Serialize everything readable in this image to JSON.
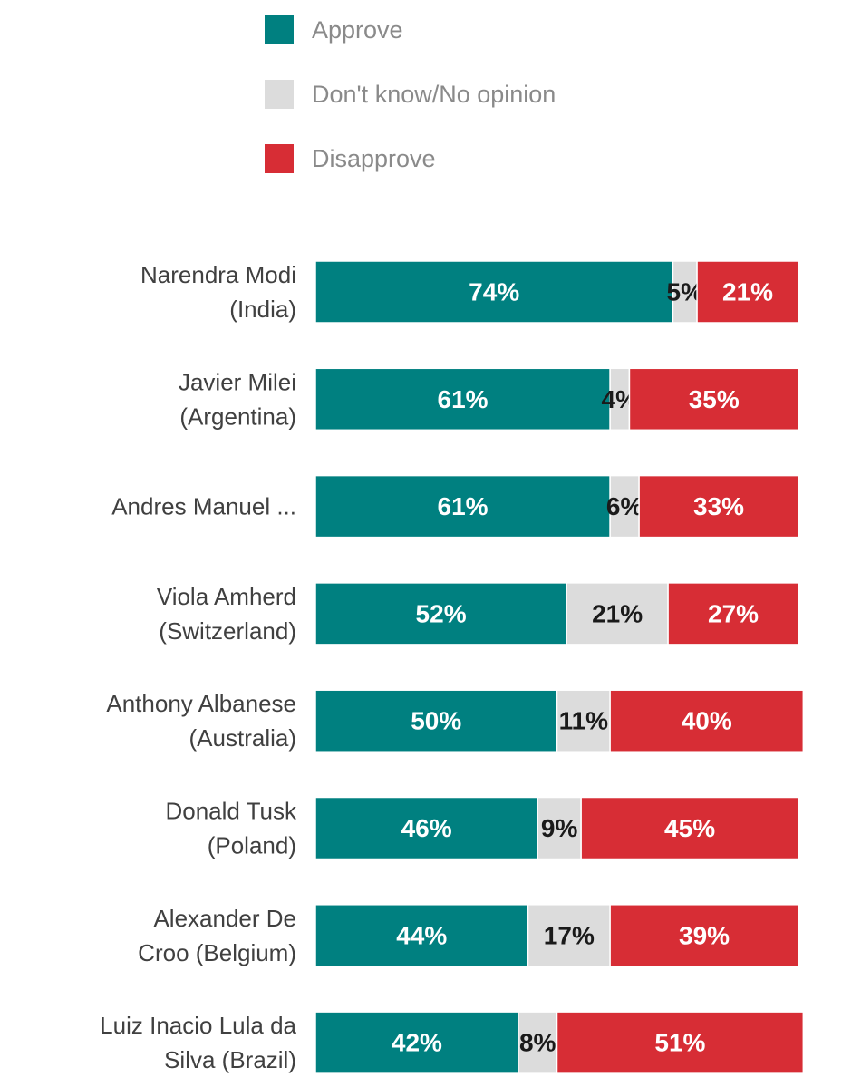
{
  "chart_data": {
    "type": "bar",
    "orientation": "horizontal",
    "stacked": true,
    "normalized_percent": true,
    "title": "",
    "xlabel": "",
    "ylabel": "",
    "xlim": [
      0,
      100
    ],
    "grid": false,
    "legend_position": "top-left",
    "categories": [
      [
        "Narendra Modi",
        "(India)"
      ],
      [
        "Javier Milei",
        "(Argentina)"
      ],
      [
        "Andres Manuel ..."
      ],
      [
        "Viola Amherd",
        "(Switzerland)"
      ],
      [
        "Anthony Albanese",
        "(Australia)"
      ],
      [
        "Donald Tusk",
        "(Poland)"
      ],
      [
        "Alexander De",
        "Croo (Belgium)"
      ],
      [
        "Luiz Inacio Lula da",
        "Silva (Brazil)"
      ]
    ],
    "series": [
      {
        "name": "Approve",
        "color": "#008080",
        "label_color": "#ffffff",
        "values": [
          74,
          61,
          61,
          52,
          50,
          46,
          44,
          42
        ]
      },
      {
        "name": "Don't know/No opinion",
        "color": "#dcdcdc",
        "label_color": "#1a1a1a",
        "values": [
          5,
          4,
          6,
          21,
          11,
          9,
          17,
          8
        ]
      },
      {
        "name": "Disapprove",
        "color": "#d72d35",
        "label_color": "#ffffff",
        "values": [
          21,
          35,
          33,
          27,
          40,
          45,
          39,
          51
        ]
      }
    ],
    "value_suffix": "%"
  }
}
